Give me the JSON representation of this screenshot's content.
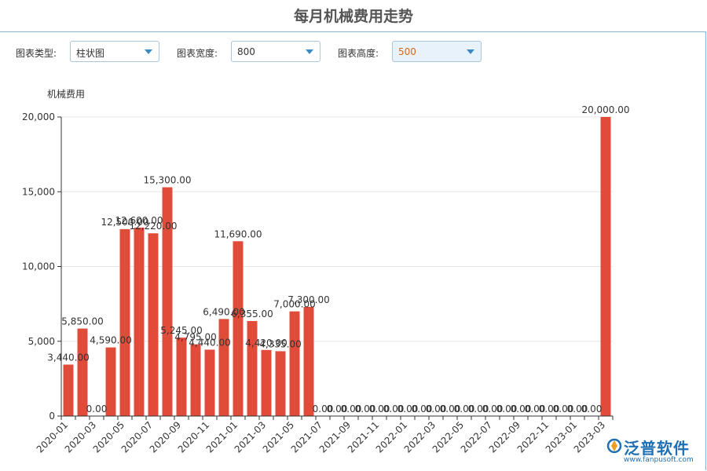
{
  "title": "每月机械费用走势",
  "controls": {
    "type_label": "图表类型:",
    "type_value": "柱状图",
    "width_label": "图表宽度:",
    "width_value": "800",
    "height_label": "图表高度:",
    "height_value": "500"
  },
  "colors": {
    "bar": "#e04b3a",
    "axis": "#333333",
    "grid": "#e6e6e6",
    "accent": "#3b8ac4"
  },
  "watermark": {
    "brand": "泛普软件",
    "url": "www.fanpusoft.com"
  },
  "chart_data": {
    "type": "bar",
    "ylabel": "机械费用",
    "ylim": [
      0,
      20000
    ],
    "yticks": [
      "0",
      "5,000",
      "10,000",
      "15,000",
      "20,000"
    ],
    "grid": true,
    "categories": [
      "2020-01",
      "2020-02",
      "2020-03",
      "2020-04",
      "2020-05",
      "2020-06",
      "2020-07",
      "2020-08",
      "2020-09",
      "2020-10",
      "2020-11",
      "2020-12",
      "2021-01",
      "2021-02",
      "2021-03",
      "2021-04",
      "2021-05",
      "2021-06",
      "2021-07",
      "2021-08",
      "2021-09",
      "2021-10",
      "2021-11",
      "2021-12",
      "2022-01",
      "2022-02",
      "2022-03",
      "2022-04",
      "2022-05",
      "2022-06",
      "2022-07",
      "2022-08",
      "2022-09",
      "2022-10",
      "2022-11",
      "2022-12",
      "2023-01",
      "2023-02",
      "2023-03"
    ],
    "values": [
      3440,
      5850,
      0,
      4590,
      12500,
      12600,
      12220,
      15300,
      5245,
      4795,
      4440,
      6490,
      11690,
      6355,
      4420,
      4335,
      7000,
      7300,
      0,
      0,
      0,
      0,
      0,
      0,
      0,
      0,
      0,
      0,
      0,
      0,
      0,
      0,
      0,
      0,
      0,
      0,
      0,
      0,
      20000
    ],
    "value_labels": [
      "3,440.00",
      "5,850.00",
      "0.00",
      "4,590.00",
      "12,500.00",
      "12,600.00",
      "12,220.00",
      "15,300.00",
      "5,245.00",
      "4,795.00",
      "4,440.00",
      "6,490.00",
      "11,690.00",
      "6,355.00",
      "4,420.00",
      "4,335.00",
      "7,000.00",
      "7,300.00",
      "0.00",
      "0.00",
      "0.00",
      "0.00",
      "0.00",
      "0.00",
      "0.00",
      "0.00",
      "0.00",
      "0.00",
      "0.00",
      "0.00",
      "0.00",
      "0.00",
      "0.00",
      "0.00",
      "0.00",
      "0.00",
      "0.00",
      "0.00",
      "20,000.00"
    ],
    "xtick_labels": [
      "2020-01",
      "2020-03",
      "2020-05",
      "2020-07",
      "2020-09",
      "2020-11",
      "2021-01",
      "2021-03",
      "2021-05",
      "2021-07",
      "2021-09",
      "2021-11",
      "2022-01",
      "2022-03",
      "2022-05",
      "2022-07",
      "2022-09",
      "2022-11",
      "2023-01",
      "2023-03"
    ]
  }
}
